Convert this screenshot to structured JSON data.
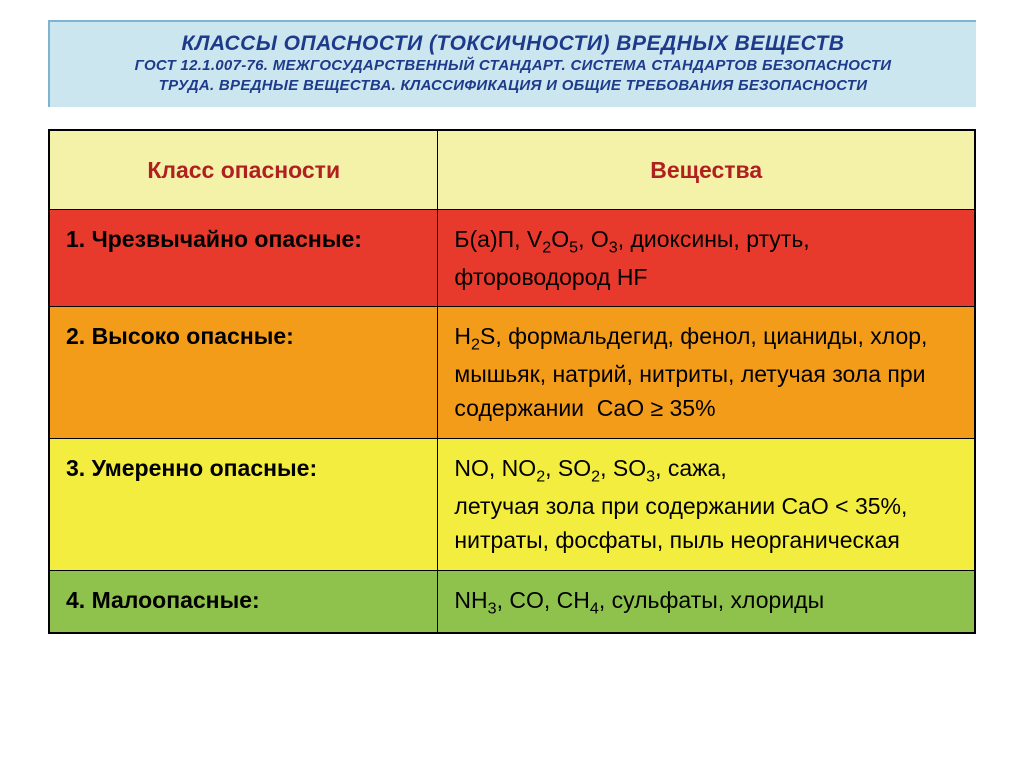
{
  "header": {
    "title": "КЛАССЫ ОПАСНОСТИ (ТОКСИЧНОСТИ) ВРЕДНЫХ ВЕЩЕСТВ",
    "sub1": "ГОСТ 12.1.007-76. МЕЖГОСУДАРСТВЕННЫЙ СТАНДАРТ. СИСТЕМА СТАНДАРТОВ БЕЗОПАСНОСТИ",
    "sub2": "ТРУДА. ВРЕДНЫЕ ВЕЩЕСТВА. КЛАССИФИКАЦИЯ И ОБЩИЕ ТРЕБОВАНИЯ БЕЗОПАСНОСТИ",
    "bg_color": "#cce6f0",
    "title_color": "#1e3a8a"
  },
  "table": {
    "type": "table",
    "header_bg": "#f4f2a8",
    "header_text_color": "#b02020",
    "columns": [
      "Класс опасности",
      "Вещества"
    ],
    "rows": [
      {
        "bg": "#e83a2c",
        "class_label": "1. Чрезвычайно опасные:",
        "substances_html": "Б(а)П, V<sub>2</sub>O<sub>5</sub>, O<sub>3</sub>, диоксины, ртуть, фтороводород HF"
      },
      {
        "bg": "#f29c1a",
        "class_label": "2. Высоко опасные:",
        "substances_html": "H<sub>2</sub>S, формальдегид, фенол, цианиды, хлор, мышьяк, натрий, нитриты, летучая зола при содержании &nbsp;CaO ≥ 35%"
      },
      {
        "bg": "#f2ed3e",
        "class_label": "3. Умеренно опасные:",
        "substances_html": "NO, NO<sub>2</sub>, SO<sub>2</sub>, SO<sub>3</sub>, сажа,<br>летучая зола при содержании CaO &lt; 35%, нитраты, фосфаты, пыль неорганическая"
      },
      {
        "bg": "#8fc24c",
        "class_label": "4. Малоопасные:",
        "substances_html": "NH<sub>3</sub>, CO, CH<sub>4</sub>, сульфаты, хлориды"
      }
    ]
  }
}
